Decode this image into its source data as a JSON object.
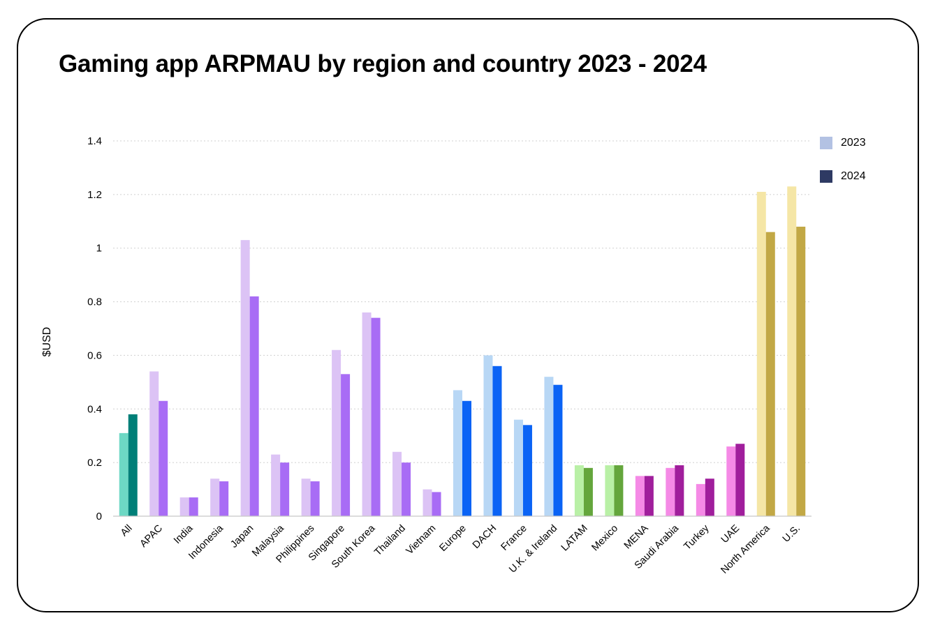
{
  "title": "Gaming app ARPMAU by region and country 2023 - 2024",
  "legend": [
    {
      "label": "2023",
      "color": "#b3c2e3"
    },
    {
      "label": "2024",
      "color": "#2e3a63"
    }
  ],
  "chart_data": {
    "type": "bar",
    "title": "Gaming app ARPMAU by region and country 2023 - 2024",
    "ylabel": "$USD",
    "xlabel": "",
    "ylim": [
      0,
      1.4
    ],
    "yticks": [
      0,
      0.2,
      0.4,
      0.6,
      0.8,
      1,
      1.2,
      1.4
    ],
    "ytick_labels": [
      "0",
      "0.2",
      "0.4",
      "0.6",
      "0.8",
      "1",
      "1.2",
      "1.4"
    ],
    "grid": "horizontal dotted",
    "legend_position": "top-right",
    "categories": [
      "All",
      "APAC",
      "India",
      "Indonesia",
      "Japan",
      "Malaysia",
      "Philippines",
      "Singapore",
      "South Korea",
      "Thailand",
      "Vietnam",
      "Europe",
      "DACH",
      "France",
      "U.K. & Ireland",
      "LATAM",
      "Mexico",
      "MENA",
      "Saudi Arabia",
      "Turkey",
      "UAE",
      "North America",
      "U.S."
    ],
    "series": [
      {
        "name": "2023",
        "values": [
          0.31,
          0.54,
          0.07,
          0.14,
          1.03,
          0.23,
          0.14,
          0.62,
          0.76,
          0.24,
          0.1,
          0.47,
          0.6,
          0.36,
          0.52,
          0.19,
          0.19,
          0.15,
          0.18,
          0.12,
          0.26,
          1.21,
          1.23
        ]
      },
      {
        "name": "2024",
        "values": [
          0.38,
          0.43,
          0.07,
          0.13,
          0.82,
          0.2,
          0.13,
          0.53,
          0.74,
          0.2,
          0.09,
          0.43,
          0.56,
          0.34,
          0.49,
          0.18,
          0.19,
          0.15,
          0.19,
          0.14,
          0.27,
          1.06,
          1.08
        ]
      }
    ],
    "bar_colors": {
      "All": [
        "#6dd8c4",
        "#007f78"
      ],
      "APAC": [
        "#dcc3f5",
        "#a86cf5"
      ],
      "Europe": [
        "#b8d7f5",
        "#0a63f5"
      ],
      "LATAM": [
        "#b9f0a6",
        "#64a63c"
      ],
      "MENA": [
        "#f58ae6",
        "#a01e9c"
      ],
      "North America": [
        "#f5e6a6",
        "#c2a845"
      ]
    },
    "category_groups": [
      "All",
      "APAC",
      "APAC",
      "APAC",
      "APAC",
      "APAC",
      "APAC",
      "APAC",
      "APAC",
      "APAC",
      "APAC",
      "Europe",
      "Europe",
      "Europe",
      "Europe",
      "LATAM",
      "LATAM",
      "MENA",
      "MENA",
      "MENA",
      "MENA",
      "North America",
      "North America"
    ]
  }
}
